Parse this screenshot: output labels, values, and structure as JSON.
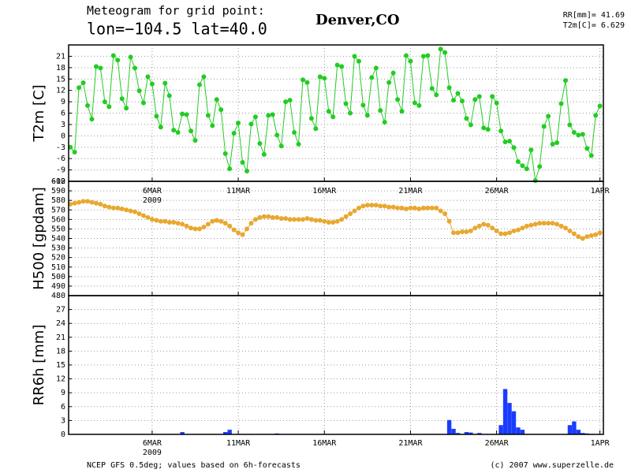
{
  "title": "Meteogram for grid point:",
  "subtitle": "lon=−104.5 lat=40.0",
  "location": "Denver,CO",
  "stats": [
    "RR[mm]= 41.69",
    "T2m[C]= 6.629"
  ],
  "footer_left": "NCEP GFS 0.5deg; values based on 6h-forecasts",
  "footer_right": "(c) 2007 www.superzelle.de",
  "chart_data": {
    "type": "meteogram",
    "xlim": [
      0.15,
      31.2
    ],
    "xticks": [
      {
        "value": 5,
        "label": "6MAR"
      },
      {
        "value": 10,
        "label": "11MAR"
      },
      {
        "value": 15,
        "label": "16MAR"
      },
      {
        "value": 20,
        "label": "21MAR"
      },
      {
        "value": 25,
        "label": "26MAR"
      },
      {
        "value": 31,
        "label": "1APR"
      }
    ],
    "year": "2009",
    "grid": true,
    "x": [
      0.25,
      0.5,
      0.75,
      1,
      1.25,
      1.5,
      1.75,
      2,
      2.25,
      2.5,
      2.75,
      3,
      3.25,
      3.5,
      3.75,
      4,
      4.25,
      4.5,
      4.75,
      5,
      5.25,
      5.5,
      5.75,
      6,
      6.25,
      6.5,
      6.75,
      7,
      7.25,
      7.5,
      7.75,
      8,
      8.25,
      8.5,
      8.75,
      9,
      9.25,
      9.5,
      9.75,
      10,
      10.25,
      10.5,
      10.75,
      11,
      11.25,
      11.5,
      11.75,
      12,
      12.25,
      12.5,
      12.75,
      13,
      13.25,
      13.5,
      13.75,
      14,
      14.25,
      14.5,
      14.75,
      15,
      15.25,
      15.5,
      15.75,
      16,
      16.25,
      16.5,
      16.75,
      17,
      17.25,
      17.5,
      17.75,
      18,
      18.25,
      18.5,
      18.75,
      19,
      19.25,
      19.5,
      19.75,
      20,
      20.25,
      20.5,
      20.75,
      21,
      21.25,
      21.5,
      21.75,
      22,
      22.25,
      22.5,
      22.75,
      23,
      23.25,
      23.5,
      23.75,
      24,
      24.25,
      24.5,
      24.75,
      25,
      25.25,
      25.5,
      25.75,
      26,
      26.25,
      26.5,
      26.75,
      27,
      27.25,
      27.5,
      27.75,
      28,
      28.25,
      28.5,
      28.75,
      29,
      29.25,
      29.5,
      29.75,
      30,
      30.25,
      30.5,
      30.75,
      31
    ],
    "panels": [
      {
        "type": "line",
        "ylabel": "T2m [C]",
        "color": "#22cc22",
        "ylim": [
          -12,
          24
        ],
        "yticks": [
          -12,
          -9,
          -6,
          -3,
          0,
          3,
          6,
          9,
          12,
          15,
          18,
          21
        ],
        "values": [
          -3,
          -4.3,
          12.7,
          14,
          8,
          4.4,
          18.3,
          17.9,
          9,
          7.7,
          21.2,
          20,
          9.8,
          7.3,
          20.8,
          17.9,
          11.9,
          8.7,
          15.6,
          13.7,
          5.2,
          2.3,
          13.9,
          10.6,
          1.5,
          0.9,
          5.8,
          5.6,
          1.3,
          -1.2,
          13.5,
          15.6,
          5.4,
          2.7,
          9.6,
          6.9,
          -4.7,
          -8.7,
          0.7,
          3.4,
          -7,
          -9.3,
          3.1,
          5,
          -2,
          -4.9,
          5.4,
          5.6,
          0.2,
          -2.7,
          9,
          9.4,
          0.9,
          -2.2,
          14.8,
          14.1,
          4.6,
          1.9,
          15.6,
          15.2,
          6.5,
          5,
          18.7,
          18.3,
          8.5,
          6,
          21,
          19.7,
          8.1,
          5.4,
          15.4,
          17.9,
          6.7,
          3.6,
          14.1,
          16.6,
          9.6,
          6.5,
          21.2,
          19.7,
          8.7,
          8,
          21,
          21.2,
          12.5,
          10.8,
          22.9,
          22,
          12.7,
          9.4,
          11.2,
          9.2,
          4.6,
          2.9,
          9.6,
          10.4,
          2.1,
          1.7,
          10.4,
          8.7,
          1.3,
          -1.6,
          -1.4,
          -3.1,
          -6.8,
          -7.9,
          -8.7,
          -3.7,
          -11.8,
          -8.1,
          2.5,
          5.2,
          -2.2,
          -1.8,
          8.5,
          14.6,
          2.9,
          0.9,
          0.2,
          0.4,
          -3.3,
          -5.2,
          5.4,
          7.9
        ]
      },
      {
        "type": "line",
        "ylabel": "H500 [gpdam]",
        "color": "#e8a830",
        "ylim": [
          480,
          600
        ],
        "yticks": [
          480,
          490,
          500,
          510,
          520,
          530,
          540,
          550,
          560,
          570,
          580,
          590,
          600
        ],
        "values": [
          576,
          577,
          578,
          579,
          579,
          578,
          577,
          576,
          574,
          573,
          572,
          572,
          571,
          570,
          569,
          568,
          566,
          564,
          562,
          560,
          559,
          558,
          558,
          557,
          557,
          556,
          555,
          553,
          551,
          550,
          550,
          552,
          555,
          558,
          559,
          558,
          556,
          553,
          549,
          546,
          544,
          550,
          556,
          560,
          562,
          563,
          563,
          562,
          562,
          561,
          561,
          560,
          560,
          560,
          560,
          561,
          560,
          559,
          559,
          558,
          557,
          557,
          558,
          560,
          563,
          566,
          569,
          572,
          574,
          575,
          575,
          575,
          574,
          574,
          573,
          573,
          572,
          572,
          571,
          572,
          572,
          571,
          572,
          572,
          572,
          572,
          569,
          566,
          558,
          546,
          546,
          547,
          547,
          548,
          551,
          553,
          555,
          554,
          551,
          548,
          545,
          545,
          546,
          548,
          549,
          551,
          553,
          554,
          555,
          556,
          556,
          556,
          556,
          555,
          553,
          551,
          548,
          545,
          542,
          540,
          542,
          543,
          544,
          546
        ]
      },
      {
        "type": "bar",
        "ylabel": "RR6h [mm]",
        "color": "#1a3cff",
        "ylim": [
          0,
          30
        ],
        "yticks": [
          0,
          3,
          6,
          9,
          12,
          15,
          18,
          21,
          24,
          27
        ],
        "values": [
          0,
          0,
          0,
          0,
          0,
          0,
          0,
          0,
          0,
          0,
          0,
          0,
          0,
          0,
          0,
          0,
          0,
          0,
          0,
          0,
          0,
          0,
          0,
          0,
          0,
          0,
          0.5,
          0,
          0,
          0,
          0,
          0,
          0,
          0,
          0,
          0,
          0.5,
          1,
          0,
          0,
          0,
          0,
          0,
          0,
          0,
          0,
          0,
          0,
          0.2,
          0,
          0,
          0,
          0,
          0,
          0,
          0,
          0,
          0,
          0,
          0,
          0,
          0,
          0,
          0,
          0,
          0,
          0,
          0,
          0,
          0,
          0,
          0.1,
          0,
          0,
          0,
          0,
          0,
          0,
          0,
          0,
          0,
          0,
          0,
          0,
          0,
          0,
          0,
          0,
          3.1,
          1.2,
          0.3,
          0,
          0.5,
          0.4,
          0,
          0.3,
          0,
          0,
          0,
          0,
          2,
          9.8,
          6.8,
          5,
          1.5,
          1,
          0,
          0,
          0,
          0,
          0,
          0,
          0,
          0,
          0,
          0,
          2,
          2.8,
          1,
          0.3,
          0.2,
          0.1,
          0,
          0
        ]
      }
    ]
  }
}
